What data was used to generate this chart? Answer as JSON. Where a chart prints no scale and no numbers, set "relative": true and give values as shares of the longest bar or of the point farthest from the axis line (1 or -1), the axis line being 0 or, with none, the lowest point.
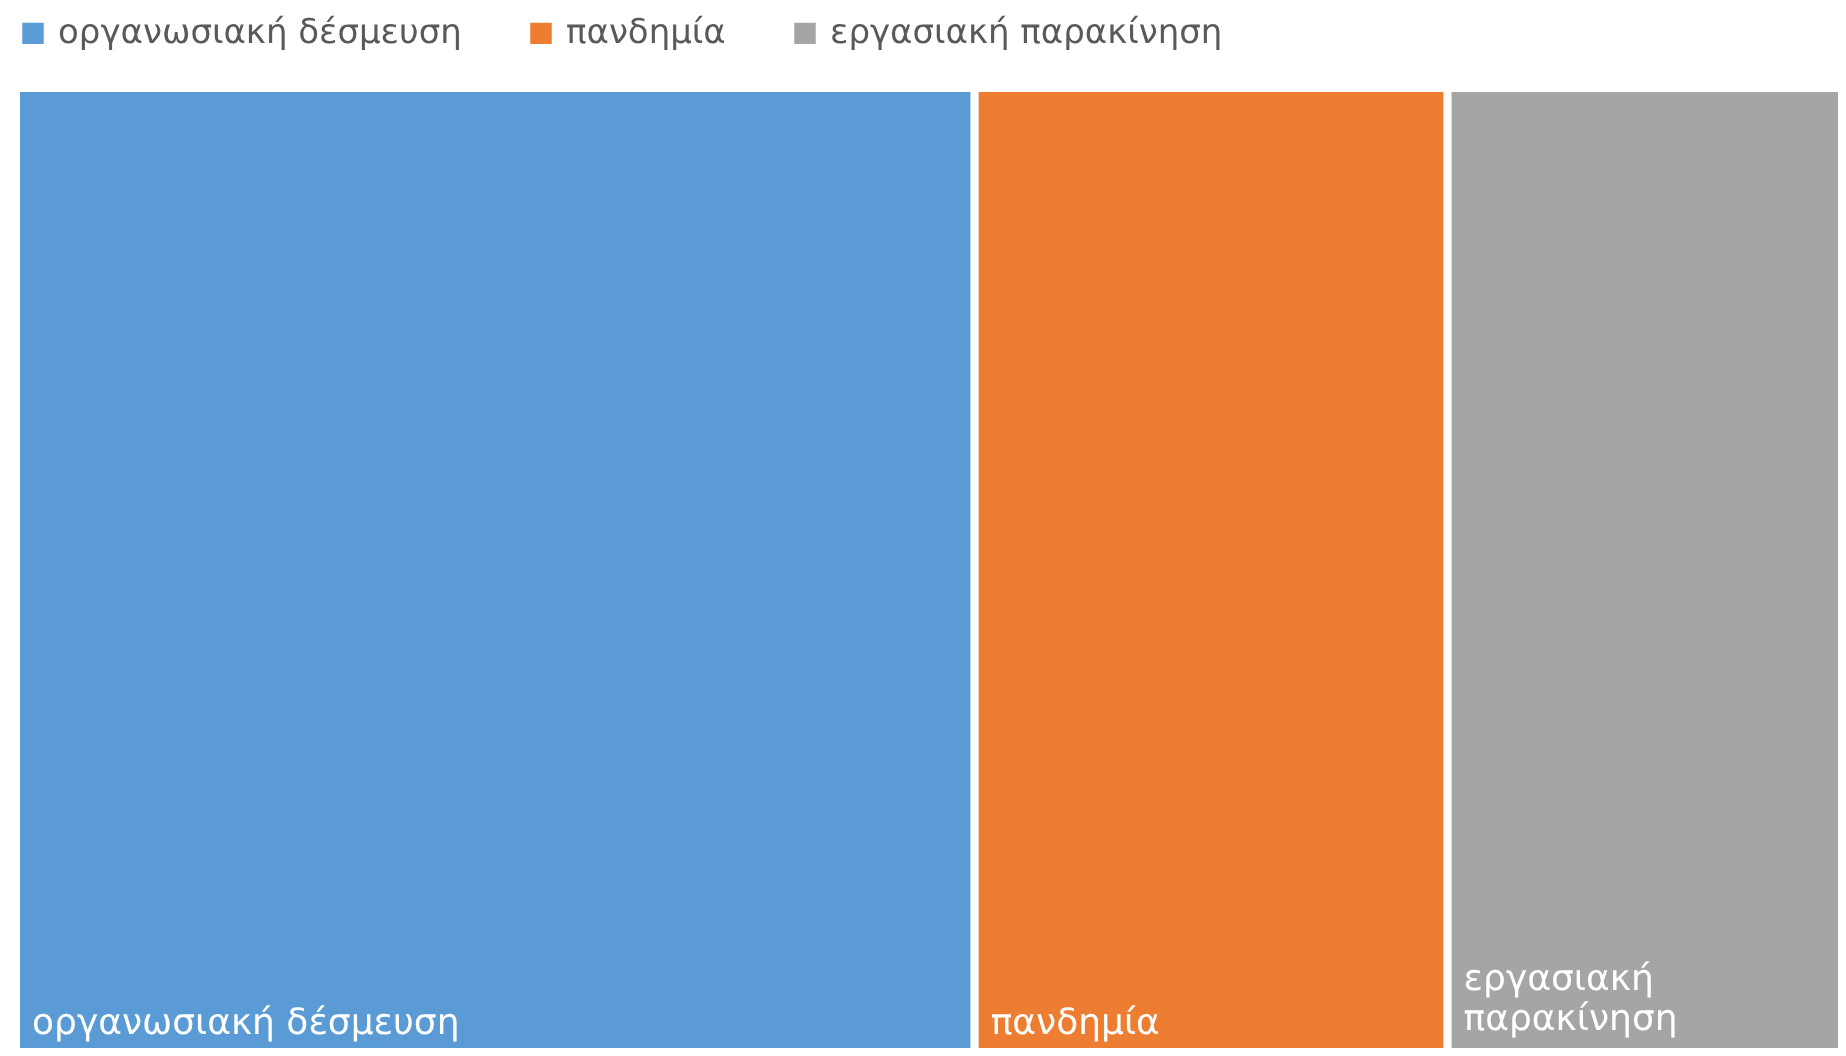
{
  "chart_data": {
    "type": "bar",
    "orientation": "horizontal",
    "stacked": true,
    "relative": true,
    "legend": "top",
    "categories": [
      null
    ],
    "series": [
      {
        "name": "οργανωσιακή δέσμευση",
        "color": "#5b9bd5",
        "values": [
          0.525
        ]
      },
      {
        "name": "πανδημία",
        "color": "#ed7d31",
        "values": [
          0.259
        ]
      },
      {
        "name": "εργασιακή παρακίνηση",
        "color": "#a5a5a5",
        "values": [
          0.216
        ]
      }
    ]
  }
}
